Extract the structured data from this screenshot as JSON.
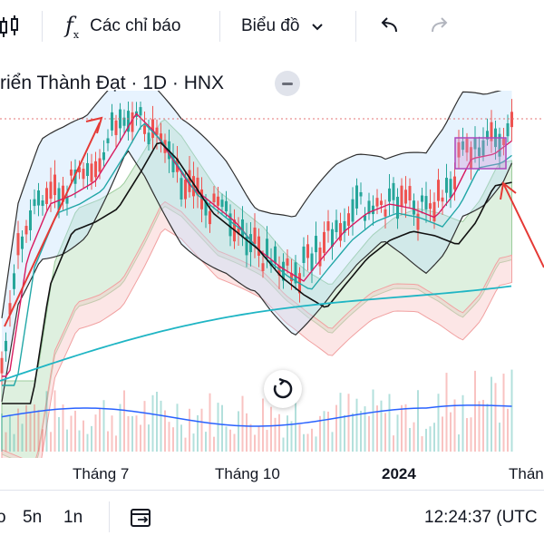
{
  "toolbar": {
    "indicators_label": "Các chỉ báo",
    "chart_type_label": "Biểu đồ",
    "icons": [
      "candles-icon",
      "fx-icon",
      "chevron-down-icon",
      "undo-icon",
      "redo-icon"
    ]
  },
  "symbol": {
    "title": "riển Thành Đạt · 1D · HNX"
  },
  "chart": {
    "x_labels": [
      "Tháng 7",
      "Tháng 10",
      "2024",
      "Thán"
    ],
    "colors": {
      "up": "#26a69a",
      "down": "#ef5350",
      "bb": "#2f2f2f",
      "ema_black": "#111111",
      "ema_teal": "#22a7a7",
      "ema_red": "#d81b60",
      "cloud_green": "#c8e6c9",
      "cloud_red": "#f8c7c7",
      "arrow": "#e53935",
      "box": "#ab47bc",
      "volume_line": "#2962ff"
    }
  },
  "bottom": {
    "range_1": "5n",
    "range_2": "1n",
    "time": "12:24:37 (UTC"
  }
}
